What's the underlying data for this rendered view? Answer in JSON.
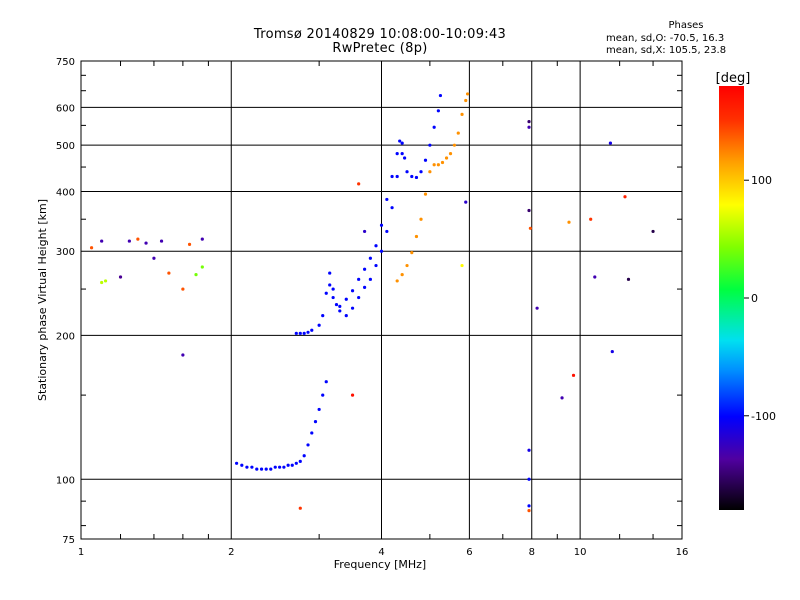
{
  "colors": {
    "background": "#ffffff",
    "axis": "#000000",
    "grid": "#000000"
  },
  "chart_data": {
    "type": "scatter",
    "title": "Tromsø 20140829 10:08:00-10:09:43",
    "subtitle": "RwPretec (8p)",
    "xlabel": "Frequency [MHz]",
    "ylabel": "Stationary phase Virtual Height [km]",
    "xscale": "log",
    "yscale": "log",
    "xlim": [
      1,
      16
    ],
    "ylim": [
      75,
      750
    ],
    "grid": true,
    "x_ticks": [
      1,
      2,
      4,
      6,
      8,
      10,
      16
    ],
    "x_minor_ticks": [
      1.2,
      1.4,
      1.6,
      1.8,
      3,
      5,
      7,
      9,
      12,
      14
    ],
    "y_ticks": [
      75,
      100,
      200,
      300,
      400,
      500,
      600,
      750
    ],
    "y_minor_ticks": [
      80,
      90,
      150,
      250,
      350,
      450,
      550,
      650,
      700
    ],
    "stats": {
      "heading": "Phases",
      "line1": "mean, sd,O: -70.5, 16.3",
      "line2": "mean, sd,X: 105.5, 23.8"
    },
    "colorbar": {
      "label": "[deg]",
      "range": [
        -180,
        180
      ],
      "ticks": [
        100,
        0,
        -100
      ],
      "colormap": "rainbow"
    },
    "series": [
      {
        "points": [
          [
            2.05,
            108,
            -100
          ],
          [
            2.1,
            107,
            -100
          ],
          [
            2.15,
            106,
            -100
          ],
          [
            2.2,
            106,
            -100
          ],
          [
            2.25,
            105,
            -100
          ],
          [
            2.3,
            105,
            -100
          ],
          [
            2.35,
            105,
            -100
          ],
          [
            2.4,
            105,
            -100
          ],
          [
            2.45,
            106,
            -100
          ],
          [
            2.5,
            106,
            -100
          ],
          [
            2.55,
            106,
            -100
          ],
          [
            2.6,
            107,
            -100
          ],
          [
            2.65,
            107,
            -100
          ],
          [
            2.7,
            108,
            -100
          ],
          [
            2.75,
            109,
            -100
          ],
          [
            2.8,
            112,
            -100
          ],
          [
            2.85,
            118,
            -100
          ],
          [
            2.9,
            125,
            -100
          ],
          [
            2.95,
            132,
            -100
          ],
          [
            3.0,
            140,
            -100
          ],
          [
            3.05,
            150,
            -100
          ],
          [
            3.1,
            160,
            -100
          ],
          [
            2.7,
            202,
            -100
          ],
          [
            2.75,
            202,
            -100
          ],
          [
            2.8,
            202,
            -100
          ],
          [
            2.85,
            203,
            -100
          ],
          [
            2.9,
            205,
            -100
          ],
          [
            3.0,
            210,
            -100
          ],
          [
            3.05,
            220,
            -100
          ],
          [
            3.1,
            245,
            -100
          ],
          [
            3.15,
            255,
            -100
          ],
          [
            3.2,
            240,
            -100
          ],
          [
            3.25,
            232,
            -100
          ],
          [
            3.3,
            230,
            -100
          ],
          [
            3.4,
            238,
            -100
          ],
          [
            3.5,
            248,
            -100
          ],
          [
            3.6,
            262,
            -100
          ],
          [
            3.7,
            275,
            -100
          ],
          [
            3.8,
            290,
            -100
          ],
          [
            3.9,
            308,
            -100
          ],
          [
            4.0,
            340,
            -100
          ],
          [
            4.1,
            385,
            -100
          ],
          [
            4.2,
            430,
            -100
          ],
          [
            4.3,
            480,
            -100
          ],
          [
            4.35,
            510,
            -100
          ],
          [
            4.4,
            505,
            -100
          ],
          [
            4.45,
            470,
            -100
          ],
          [
            4.5,
            440,
            -100
          ],
          [
            4.6,
            430,
            -100
          ],
          [
            4.7,
            428,
            -100
          ],
          [
            4.8,
            440,
            -100
          ],
          [
            4.9,
            465,
            -100
          ],
          [
            5.0,
            500,
            -100
          ],
          [
            5.1,
            545,
            -100
          ],
          [
            5.2,
            590,
            -100
          ],
          [
            5.25,
            635,
            -100
          ]
        ]
      },
      {
        "points": [
          [
            3.15,
            270,
            -100
          ],
          [
            3.2,
            250,
            -100
          ],
          [
            3.3,
            225,
            -100
          ],
          [
            3.4,
            220,
            -100
          ],
          [
            3.5,
            228,
            -100
          ],
          [
            3.6,
            240,
            -100
          ],
          [
            3.7,
            252,
            -100
          ],
          [
            3.8,
            262,
            -100
          ],
          [
            3.9,
            280,
            -100
          ],
          [
            4.0,
            300,
            -100
          ],
          [
            4.1,
            330,
            -100
          ],
          [
            4.2,
            370,
            -100
          ],
          [
            4.3,
            430,
            -100
          ],
          [
            4.4,
            480,
            -100
          ]
        ]
      },
      {
        "points": [
          [
            4.3,
            260,
            120
          ],
          [
            4.4,
            268,
            120
          ],
          [
            4.5,
            280,
            120
          ],
          [
            4.6,
            298,
            120
          ],
          [
            4.7,
            322,
            120
          ],
          [
            4.8,
            350,
            120
          ],
          [
            4.9,
            395,
            120
          ],
          [
            5.0,
            440,
            120
          ],
          [
            5.1,
            455,
            120
          ],
          [
            5.2,
            455,
            120
          ],
          [
            5.3,
            460,
            120
          ],
          [
            5.4,
            470,
            120
          ],
          [
            5.5,
            480,
            120
          ],
          [
            5.6,
            500,
            120
          ],
          [
            5.7,
            530,
            120
          ],
          [
            5.8,
            580,
            120
          ],
          [
            5.9,
            620,
            120
          ],
          [
            5.95,
            640,
            120
          ]
        ]
      },
      {
        "points": [
          [
            1.1,
            315,
            -130
          ],
          [
            1.25,
            315,
            -130
          ],
          [
            1.35,
            312,
            -130
          ],
          [
            1.45,
            315,
            -130
          ],
          [
            1.4,
            290,
            -130
          ],
          [
            1.6,
            182,
            -130
          ],
          [
            1.75,
            318,
            -130
          ],
          [
            1.1,
            258,
            60
          ],
          [
            1.12,
            260,
            60
          ],
          [
            1.7,
            268,
            40
          ],
          [
            1.75,
            278,
            40
          ],
          [
            1.05,
            305,
            140
          ],
          [
            1.3,
            318,
            140
          ],
          [
            1.5,
            270,
            140
          ],
          [
            1.6,
            250,
            140
          ],
          [
            1.65,
            310,
            140
          ],
          [
            1.2,
            265,
            -140
          ],
          [
            2.75,
            87,
            150
          ],
          [
            3.5,
            150,
            170
          ],
          [
            3.6,
            415,
            150
          ],
          [
            3.7,
            330,
            -120
          ],
          [
            5.8,
            280,
            80
          ],
          [
            5.9,
            380,
            -120
          ],
          [
            7.9,
            560,
            -150
          ],
          [
            7.9,
            545,
            -130
          ],
          [
            7.9,
            365,
            -150
          ],
          [
            7.9,
            115,
            -110
          ],
          [
            7.9,
            100,
            -100
          ],
          [
            7.9,
            88,
            -100
          ],
          [
            7.9,
            86,
            140
          ],
          [
            7.95,
            335,
            140
          ],
          [
            8.2,
            228,
            -130
          ],
          [
            9.5,
            345,
            120
          ],
          [
            9.2,
            148,
            -130
          ],
          [
            9.7,
            165,
            170
          ],
          [
            10.5,
            350,
            150
          ],
          [
            10.7,
            265,
            -130
          ],
          [
            11.5,
            505,
            -110
          ],
          [
            11.6,
            185,
            -110
          ],
          [
            12.3,
            390,
            160
          ],
          [
            12.5,
            262,
            -160
          ],
          [
            14,
            330,
            -160
          ]
        ]
      }
    ]
  }
}
